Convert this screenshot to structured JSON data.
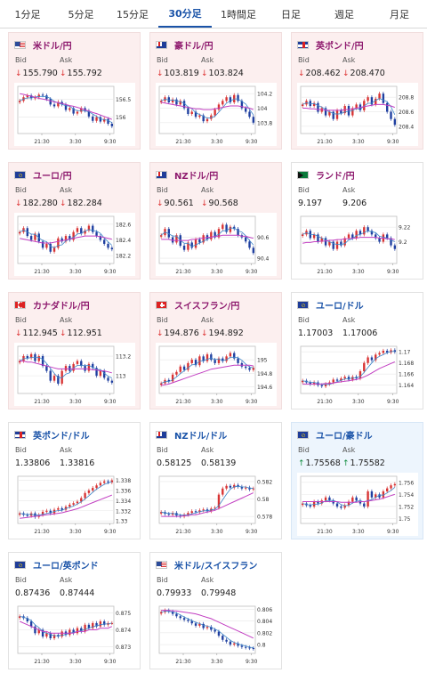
{
  "tabs": [
    {
      "label": "1分足",
      "active": false
    },
    {
      "label": "5分足",
      "active": false
    },
    {
      "label": "15分足",
      "active": false
    },
    {
      "label": "30分足",
      "active": true
    },
    {
      "label": "1時間足",
      "active": false
    },
    {
      "label": "日足",
      "active": false
    },
    {
      "label": "週足",
      "active": false
    },
    {
      "label": "月足",
      "active": false
    }
  ],
  "labels": {
    "bid": "Bid",
    "ask": "Ask"
  },
  "time_labels": [
    "21:30",
    "3:30",
    "9:30"
  ],
  "colors": {
    "tab_active": "#1a53a8",
    "jpy_name": "#8e1a6e",
    "usd_name": "#1a53a8",
    "down": "#d33333",
    "up": "#0a8a3a",
    "card_down_bg": "#fcefef",
    "card_up_bg": "#edf5fd",
    "candle_up": "#d83333",
    "candle_down": "#1f3fa0",
    "ma_short": "#3d86c8",
    "ma_long": "#c23fc2"
  },
  "cards": [
    {
      "name": "米ドル/円",
      "flag": "us",
      "quote": "jpy",
      "state": "down",
      "bid": "155.790",
      "ask": "155.792",
      "dir": "down",
      "chart_data": {
        "type": "candlestick",
        "yticks": [
          "156.5",
          "156"
        ],
        "ylim": [
          155.55,
          156.85
        ],
        "trend": [
          156.45,
          156.55,
          156.6,
          156.52,
          156.55,
          156.62,
          156.6,
          156.5,
          156.35,
          156.3,
          156.42,
          156.35,
          156.2,
          156.25,
          156.1,
          156.15,
          156.25,
          156.18,
          156.02,
          155.9,
          156.0,
          155.88,
          155.95,
          155.82,
          155.75
        ],
        "ma_long": [
          156.65,
          156.63,
          156.6,
          156.58,
          156.55,
          156.52,
          156.5,
          156.48,
          156.45,
          156.42,
          156.4,
          156.38,
          156.35,
          156.32,
          156.3,
          156.27,
          156.24,
          156.2,
          156.17,
          156.13,
          156.1,
          156.06,
          156.02,
          155.98,
          155.94
        ]
      }
    },
    {
      "name": "豪ドル/円",
      "flag": "au",
      "quote": "jpy",
      "state": "down",
      "bid": "103.819",
      "ask": "103.824",
      "dir": "down",
      "chart_data": {
        "type": "candlestick",
        "yticks": [
          "104.2",
          "104",
          "103.8"
        ],
        "ylim": [
          103.65,
          104.3
        ],
        "trend": [
          104.1,
          104.15,
          104.08,
          104.12,
          104.05,
          104.1,
          104.0,
          103.92,
          103.95,
          103.88,
          103.9,
          103.82,
          103.85,
          103.9,
          103.98,
          104.05,
          104.1,
          104.15,
          104.08,
          104.18,
          104.1,
          104.0,
          103.95,
          103.88,
          103.8
        ],
        "ma_long": [
          104.08,
          104.07,
          104.06,
          104.05,
          104.04,
          104.03,
          104.02,
          104.01,
          104.0,
          103.99,
          103.99,
          103.98,
          103.98,
          103.98,
          103.99,
          104.0,
          104.01,
          104.02,
          104.03,
          104.03,
          104.03,
          104.02,
          104.01,
          104.0,
          103.98
        ]
      }
    },
    {
      "name": "英ポンド/円",
      "flag": "gb",
      "quote": "jpy",
      "state": "down",
      "bid": "208.462",
      "ask": "208.470",
      "dir": "down",
      "chart_data": {
        "type": "candlestick",
        "yticks": [
          "208.8",
          "208.6",
          "208.4"
        ],
        "ylim": [
          208.3,
          208.95
        ],
        "trend": [
          208.7,
          208.75,
          208.68,
          208.72,
          208.6,
          208.65,
          208.55,
          208.6,
          208.5,
          208.62,
          208.58,
          208.68,
          208.55,
          208.65,
          208.7,
          208.62,
          208.75,
          208.8,
          208.7,
          208.78,
          208.85,
          208.72,
          208.6,
          208.5,
          208.42
        ],
        "ma_long": [
          208.65,
          208.65,
          208.64,
          208.64,
          208.63,
          208.63,
          208.62,
          208.62,
          208.62,
          208.62,
          208.62,
          208.63,
          208.63,
          208.64,
          208.65,
          208.66,
          208.67,
          208.68,
          208.69,
          208.7,
          208.7,
          208.7,
          208.69,
          208.68,
          208.66
        ]
      }
    },
    {
      "name": "ユーロ/円",
      "flag": "eu",
      "quote": "jpy",
      "state": "down",
      "bid": "182.280",
      "ask": "182.284",
      "dir": "down",
      "chart_data": {
        "type": "candlestick",
        "yticks": [
          "182.6",
          "182.4",
          "182.2"
        ],
        "ylim": [
          182.1,
          182.7
        ],
        "trend": [
          182.5,
          182.55,
          182.45,
          182.4,
          182.48,
          182.38,
          182.3,
          182.35,
          182.25,
          182.3,
          182.42,
          182.38,
          182.45,
          182.4,
          182.5,
          182.55,
          182.48,
          182.52,
          182.58,
          182.5,
          182.45,
          182.4,
          182.35,
          182.3,
          182.28
        ],
        "ma_long": [
          182.42,
          182.41,
          182.4,
          182.39,
          182.38,
          182.37,
          182.36,
          182.36,
          182.36,
          182.37,
          182.38,
          182.39,
          182.4,
          182.41,
          182.42,
          182.43,
          182.44,
          182.45,
          182.45,
          182.45,
          182.45,
          182.44,
          182.43,
          182.42,
          182.41
        ]
      }
    },
    {
      "name": "NZドル/円",
      "flag": "nz",
      "quote": "jpy",
      "state": "down",
      "bid": "90.561",
      "ask": "90.568",
      "dir": "down",
      "chart_data": {
        "type": "candlestick",
        "yticks": [
          "90.6",
          "90.4"
        ],
        "ylim": [
          90.35,
          90.8
        ],
        "trend": [
          90.62,
          90.68,
          90.6,
          90.55,
          90.62,
          90.52,
          90.48,
          90.55,
          90.5,
          90.58,
          90.55,
          90.62,
          90.58,
          90.65,
          90.6,
          90.68,
          90.72,
          90.65,
          90.7,
          90.68,
          90.62,
          90.6,
          90.56,
          90.5,
          90.45
        ],
        "ma_long": [
          90.58,
          90.58,
          90.58,
          90.57,
          90.57,
          90.57,
          90.57,
          90.57,
          90.58,
          90.58,
          90.59,
          90.59,
          90.6,
          90.6,
          90.61,
          90.61,
          90.62,
          90.62,
          90.62,
          90.62,
          90.62,
          90.61,
          90.61,
          90.6,
          90.59
        ]
      }
    },
    {
      "name": "ランド/円",
      "flag": "za",
      "quote": "jpy",
      "state": "neutral",
      "bid": "9.197",
      "ask": "9.206",
      "dir": "none",
      "chart_data": {
        "type": "candlestick",
        "yticks": [
          "9.22",
          "9.2"
        ],
        "ylim": [
          9.17,
          9.235
        ],
        "trend": [
          9.21,
          9.215,
          9.205,
          9.21,
          9.2,
          9.205,
          9.195,
          9.2,
          9.19,
          9.2,
          9.195,
          9.205,
          9.21,
          9.205,
          9.215,
          9.21,
          9.22,
          9.215,
          9.21,
          9.205,
          9.2,
          9.21,
          9.205,
          9.195,
          9.19
        ],
        "ma_long": [
          9.198,
          9.199,
          9.199,
          9.2,
          9.2,
          9.201,
          9.201,
          9.202,
          9.202,
          9.203,
          9.203,
          9.204,
          9.204,
          9.205,
          9.205,
          9.206,
          9.206,
          9.206,
          9.206,
          9.206,
          9.205,
          9.205,
          9.204,
          9.204,
          9.203
        ]
      }
    },
    {
      "name": "カナダドル/円",
      "flag": "ca",
      "quote": "jpy",
      "state": "down",
      "bid": "112.945",
      "ask": "112.951",
      "dir": "down",
      "chart_data": {
        "type": "candlestick",
        "yticks": [
          "113.2",
          "113"
        ],
        "ylim": [
          112.82,
          113.3
        ],
        "trend": [
          113.15,
          113.2,
          113.18,
          113.22,
          113.15,
          113.2,
          113.1,
          113.05,
          112.95,
          113.0,
          112.92,
          113.05,
          113.1,
          113.05,
          113.12,
          113.15,
          113.1,
          113.05,
          113.12,
          113.08,
          113.0,
          113.05,
          112.98,
          112.95,
          112.93
        ],
        "ma_long": [
          113.15,
          113.15,
          113.14,
          113.14,
          113.13,
          113.12,
          113.11,
          113.1,
          113.09,
          113.08,
          113.07,
          113.07,
          113.07,
          113.07,
          113.07,
          113.07,
          113.07,
          113.07,
          113.07,
          113.06,
          113.06,
          113.05,
          113.05,
          113.04,
          113.03
        ]
      }
    },
    {
      "name": "スイスフラン/円",
      "flag": "ch",
      "quote": "jpy",
      "state": "down",
      "bid": "194.876",
      "ask": "194.892",
      "dir": "down",
      "chart_data": {
        "type": "candlestick",
        "yticks": [
          "195",
          "194.8",
          "194.6"
        ],
        "ylim": [
          194.5,
          195.2
        ],
        "trend": [
          194.65,
          194.7,
          194.68,
          194.78,
          194.82,
          194.9,
          194.85,
          194.95,
          195.0,
          194.92,
          195.05,
          194.98,
          195.08,
          195.0,
          194.95,
          195.02,
          194.98,
          195.05,
          195.1,
          195.02,
          194.95,
          194.9,
          194.88,
          194.85,
          194.88
        ],
        "ma_long": [
          194.62,
          194.63,
          194.64,
          194.66,
          194.68,
          194.7,
          194.72,
          194.74,
          194.76,
          194.78,
          194.8,
          194.82,
          194.84,
          194.86,
          194.87,
          194.88,
          194.89,
          194.9,
          194.91,
          194.92,
          194.92,
          194.92,
          194.92,
          194.92,
          194.91
        ]
      }
    },
    {
      "name": "ユーロ/ドル",
      "flag": "eu",
      "quote": "usd",
      "state": "neutral",
      "bid": "1.17003",
      "ask": "1.17006",
      "dir": "none",
      "chart_data": {
        "type": "candlestick",
        "yticks": [
          "1.17",
          "1.168",
          "1.166",
          "1.164"
        ],
        "ylim": [
          1.1625,
          1.171
        ],
        "trend": [
          1.1648,
          1.1645,
          1.1642,
          1.1645,
          1.164,
          1.1638,
          1.1642,
          1.1645,
          1.165,
          1.1648,
          1.1652,
          1.1655,
          1.165,
          1.1655,
          1.1652,
          1.1665,
          1.168,
          1.169,
          1.1685,
          1.1695,
          1.1698,
          1.1702,
          1.1699,
          1.1703,
          1.17
        ],
        "ma_long": [
          1.1642,
          1.1642,
          1.1642,
          1.1642,
          1.1642,
          1.1642,
          1.1643,
          1.1643,
          1.1644,
          1.1645,
          1.1646,
          1.1647,
          1.1648,
          1.1649,
          1.165,
          1.1652,
          1.1655,
          1.1658,
          1.1662,
          1.1666,
          1.167,
          1.1673,
          1.1676,
          1.1679,
          1.1682
        ]
      }
    },
    {
      "name": "英ポンド/ドル",
      "flag": "gb",
      "quote": "usd",
      "state": "neutral",
      "bid": "1.33806",
      "ask": "1.33816",
      "dir": "none",
      "chart_data": {
        "type": "candlestick",
        "yticks": [
          "1.338",
          "1.336",
          "1.334",
          "1.332",
          "1.33"
        ],
        "ylim": [
          1.3295,
          1.3388
        ],
        "trend": [
          1.3315,
          1.3312,
          1.331,
          1.3315,
          1.3308,
          1.3312,
          1.3318,
          1.332,
          1.3315,
          1.3322,
          1.3325,
          1.3322,
          1.3328,
          1.3332,
          1.3335,
          1.3338,
          1.3345,
          1.3355,
          1.336,
          1.3365,
          1.337,
          1.3375,
          1.3378,
          1.3376,
          1.338
        ],
        "ma_long": [
          1.3305,
          1.3306,
          1.3307,
          1.3308,
          1.3309,
          1.331,
          1.3311,
          1.3312,
          1.3313,
          1.3314,
          1.3315,
          1.3316,
          1.3318,
          1.332,
          1.3322,
          1.3324,
          1.3327,
          1.333,
          1.3333,
          1.3336,
          1.3339,
          1.3342,
          1.3345,
          1.3348,
          1.3351
        ]
      }
    },
    {
      "name": "NZドル/ドル",
      "flag": "nz",
      "quote": "usd",
      "state": "neutral",
      "bid": "0.58125",
      "ask": "0.58139",
      "dir": "none",
      "chart_data": {
        "type": "candlestick",
        "yticks": [
          "0.582",
          "0.58",
          "0.578"
        ],
        "ylim": [
          0.5772,
          0.5826
        ],
        "trend": [
          0.5785,
          0.5783,
          0.5782,
          0.5784,
          0.5781,
          0.578,
          0.5782,
          0.5784,
          0.5786,
          0.5785,
          0.5787,
          0.5788,
          0.5786,
          0.5789,
          0.579,
          0.5805,
          0.5812,
          0.5815,
          0.5813,
          0.5816,
          0.5814,
          0.5812,
          0.5813,
          0.5811,
          0.5812
        ],
        "ma_long": [
          0.578,
          0.578,
          0.578,
          0.578,
          0.578,
          0.578,
          0.5781,
          0.5781,
          0.5782,
          0.5782,
          0.5783,
          0.5784,
          0.5785,
          0.5786,
          0.5787,
          0.5789,
          0.5791,
          0.5793,
          0.5795,
          0.5797,
          0.5799,
          0.5801,
          0.5803,
          0.5805,
          0.5807
        ]
      }
    },
    {
      "name": "ユーロ/豪ドル",
      "flag": "eu",
      "quote": "usd",
      "state": "up",
      "bid": "1.75568",
      "ask": "1.75582",
      "dir": "up",
      "chart_data": {
        "type": "candlestick",
        "yticks": [
          "1.756",
          "1.754",
          "1.752",
          "1.75"
        ],
        "ylim": [
          1.7492,
          1.757
        ],
        "trend": [
          1.7525,
          1.7522,
          1.752,
          1.7528,
          1.7525,
          1.753,
          1.7535,
          1.753,
          1.7525,
          1.752,
          1.7518,
          1.7522,
          1.7528,
          1.7535,
          1.753,
          1.7525,
          1.752,
          1.7545,
          1.7535,
          1.754,
          1.7535,
          1.7545,
          1.755,
          1.7555,
          1.7557
        ],
        "ma_long": [
          1.7528,
          1.7528,
          1.7528,
          1.7528,
          1.7528,
          1.7528,
          1.7528,
          1.7528,
          1.7528,
          1.7528,
          1.7527,
          1.7527,
          1.7527,
          1.7527,
          1.7527,
          1.7528,
          1.7528,
          1.7529,
          1.753,
          1.7531,
          1.7532,
          1.7534,
          1.7536,
          1.7538,
          1.754
        ]
      }
    },
    {
      "name": "ユーロ/英ポンド",
      "flag": "eu",
      "quote": "usd",
      "state": "neutral",
      "bid": "0.87436",
      "ask": "0.87444",
      "dir": "none",
      "chart_data": {
        "type": "candlestick",
        "yticks": [
          "0.875",
          "0.874",
          "0.873"
        ],
        "ylim": [
          0.8726,
          0.8754
        ],
        "trend": [
          0.8748,
          0.8747,
          0.8745,
          0.8742,
          0.8738,
          0.874,
          0.8736,
          0.8738,
          0.8735,
          0.8737,
          0.8736,
          0.8739,
          0.8737,
          0.874,
          0.8738,
          0.8741,
          0.8739,
          0.8743,
          0.8741,
          0.8744,
          0.8742,
          0.8745,
          0.8743,
          0.8744,
          0.8744
        ],
        "ma_long": [
          0.8745,
          0.8744,
          0.8743,
          0.8742,
          0.8741,
          0.874,
          0.8739,
          0.8739,
          0.8738,
          0.8738,
          0.8738,
          0.8738,
          0.8738,
          0.8738,
          0.8738,
          0.8739,
          0.8739,
          0.8739,
          0.874,
          0.874,
          0.874,
          0.8741,
          0.8741,
          0.8741,
          0.8742
        ]
      }
    },
    {
      "name": "米ドル/スイスフラン",
      "flag": "us",
      "quote": "usd",
      "state": "neutral",
      "bid": "0.79933",
      "ask": "0.79948",
      "dir": "none",
      "chart_data": {
        "type": "candlestick",
        "yticks": [
          "0.806",
          "0.804",
          "0.802",
          "0.8"
        ],
        "ylim": [
          0.7985,
          0.8065
        ],
        "trend": [
          0.8055,
          0.8058,
          0.8056,
          0.8052,
          0.8048,
          0.8045,
          0.8042,
          0.804,
          0.8036,
          0.8032,
          0.8035,
          0.8028,
          0.803,
          0.8025,
          0.8022,
          0.8015,
          0.8008,
          0.8005,
          0.8,
          0.8002,
          0.7998,
          0.7996,
          0.7995,
          0.7994,
          0.7993
        ],
        "ma_long": [
          0.8058,
          0.8058,
          0.8058,
          0.8057,
          0.8057,
          0.8056,
          0.8055,
          0.8054,
          0.8053,
          0.8052,
          0.805,
          0.8048,
          0.8046,
          0.8044,
          0.8041,
          0.8038,
          0.8035,
          0.8032,
          0.8029,
          0.8026,
          0.8023,
          0.802,
          0.8017,
          0.8014,
          0.8011
        ]
      }
    }
  ]
}
